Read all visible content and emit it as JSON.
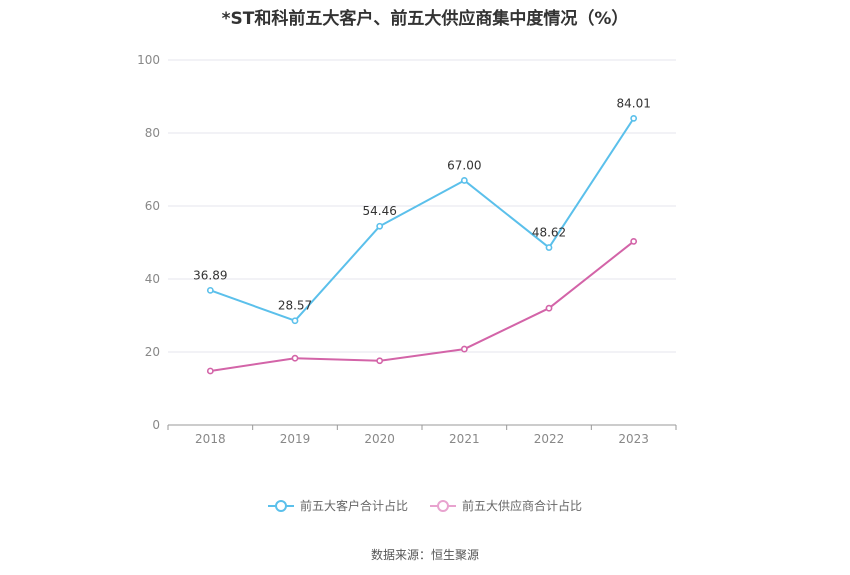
{
  "chart_data": {
    "type": "line",
    "title": "*ST和科前五大客户、前五大供应商集中度情况（%）",
    "categories": [
      "2018",
      "2019",
      "2020",
      "2021",
      "2022",
      "2023"
    ],
    "ylim": [
      0,
      100
    ],
    "yticks": [
      "0",
      "20",
      "40",
      "60",
      "80",
      "100"
    ],
    "grid": true,
    "legend_position": "bottom",
    "series": [
      {
        "name": "前五大客户合计占比",
        "color": "#5bc0eb",
        "values": [
          36.89,
          28.57,
          54.46,
          67.0,
          48.62,
          84.01
        ],
        "labels": [
          "36.89",
          "28.57",
          "54.46",
          "67.00",
          "48.62",
          "84.01"
        ]
      },
      {
        "name": "前五大供应商合计占比",
        "color": "#d364a8",
        "values": [
          14.8,
          18.3,
          17.6,
          20.8,
          32.0,
          50.3
        ]
      }
    ]
  },
  "footer": {
    "source": "数据来源：恒生聚源"
  }
}
